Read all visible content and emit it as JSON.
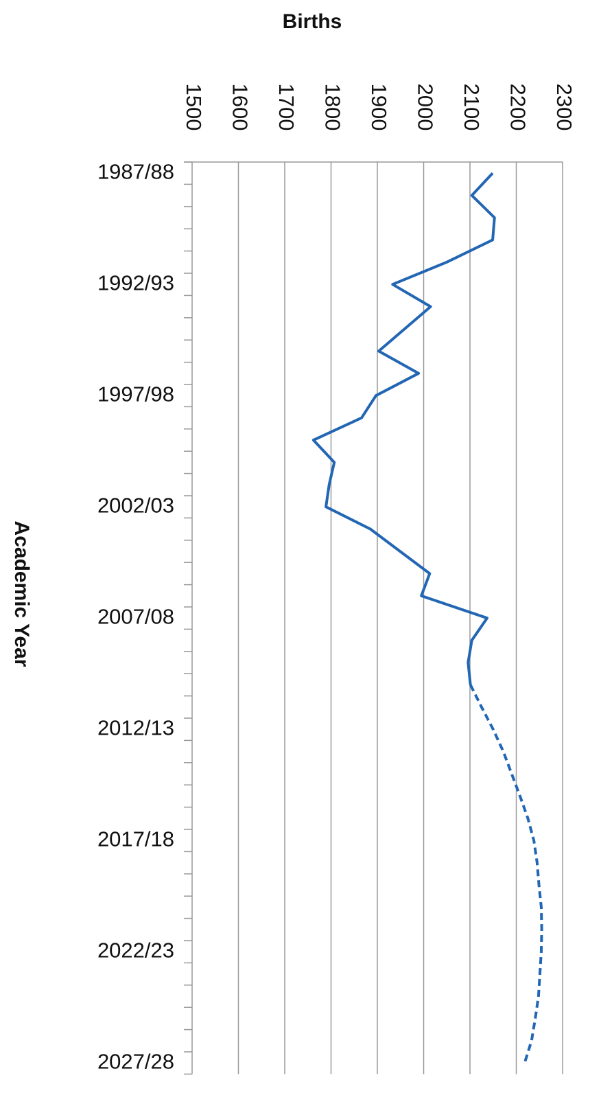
{
  "chart_data": {
    "type": "line",
    "orientation": "horizontal",
    "xlabel": "Births",
    "ylabel": "Academic Year",
    "categories": [
      "1987/88",
      null,
      null,
      null,
      null,
      "1992/93",
      null,
      null,
      null,
      null,
      "1997/98",
      null,
      null,
      null,
      null,
      "2002/03",
      null,
      null,
      null,
      null,
      "2007/08",
      null,
      null,
      null,
      null,
      "2012/13",
      null,
      null,
      null,
      null,
      "2017/18",
      null,
      null,
      null,
      null,
      "2022/23",
      null,
      null,
      null,
      null,
      "2027/28"
    ],
    "series": [
      {
        "color": "#2266b4",
        "linestyle": "solid",
        "values": [
          2149,
          2104,
          2153,
          2149,
          2050,
          1933,
          2015,
          1959,
          1903,
          1989,
          1897,
          1866,
          1762,
          1807,
          1796,
          1789,
          1885,
          1949,
          2013,
          1995,
          2137,
          2104,
          2096,
          2101,
          null,
          null,
          null,
          null,
          null,
          null,
          null,
          null,
          null,
          null,
          null,
          null,
          null,
          null,
          null,
          null,
          null
        ]
      },
      {
        "color": "#2266b4",
        "linestyle": "dashed",
        "values": [
          null,
          null,
          null,
          null,
          null,
          null,
          null,
          null,
          null,
          null,
          null,
          null,
          null,
          null,
          null,
          null,
          null,
          null,
          null,
          null,
          null,
          null,
          null,
          2101,
          2125,
          2150,
          2172,
          2190,
          2208,
          2225,
          2238,
          2245,
          2249,
          2254,
          2255,
          2254,
          2251,
          2248,
          2241,
          2233,
          2218
        ]
      }
    ],
    "xlim": [
      1500,
      2300
    ],
    "xticks": [
      1500,
      1600,
      1700,
      1800,
      1900,
      2000,
      2100,
      2200,
      2300
    ],
    "grid": true
  }
}
